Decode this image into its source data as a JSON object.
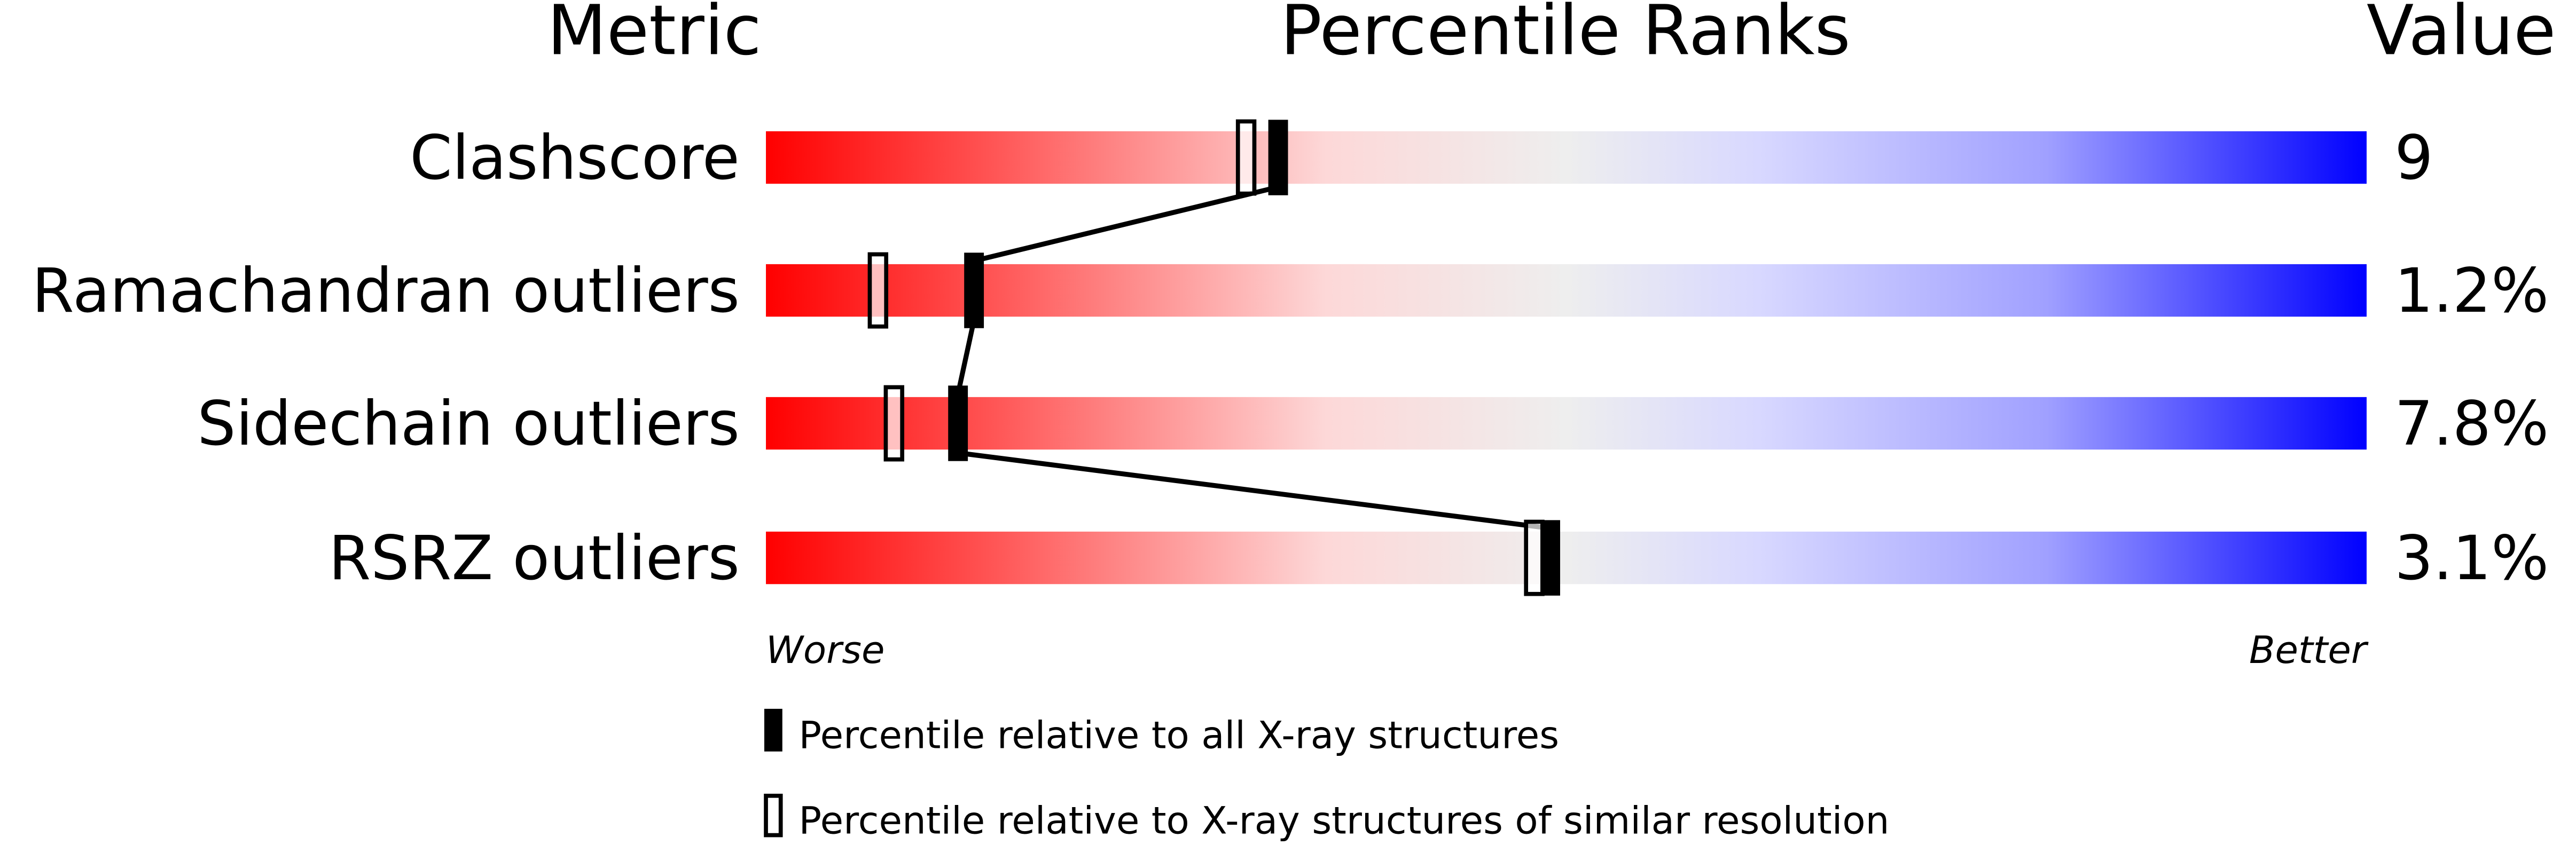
{
  "chart_data": {
    "type": "percentile-slider",
    "headers": {
      "metric": "Metric",
      "ranks": "Percentile Ranks",
      "value": "Value"
    },
    "xlim": [
      0,
      100
    ],
    "metrics": [
      {
        "name": "Clashscore",
        "value": "9",
        "percentile_all": 32,
        "percentile_similar": 30
      },
      {
        "name": "Ramachandran outliers",
        "value": "1.2%",
        "percentile_all": 13,
        "percentile_similar": 7
      },
      {
        "name": "Sidechain outliers",
        "value": "7.8%",
        "percentile_all": 12,
        "percentile_similar": 8
      },
      {
        "name": "RSRZ outliers",
        "value": "3.1%",
        "percentile_all": 49,
        "percentile_similar": 48
      }
    ],
    "axis_labels": {
      "worse": "Worse",
      "better": "Better"
    },
    "legend": [
      {
        "marker": "filled",
        "label": "Percentile relative to all X-ray structures"
      },
      {
        "marker": "open",
        "label": "Percentile relative to X-ray structures of similar resolution"
      }
    ],
    "colors": {
      "worse": "#ff0000",
      "middle": "#eeeeee",
      "better": "#0000ff"
    }
  }
}
